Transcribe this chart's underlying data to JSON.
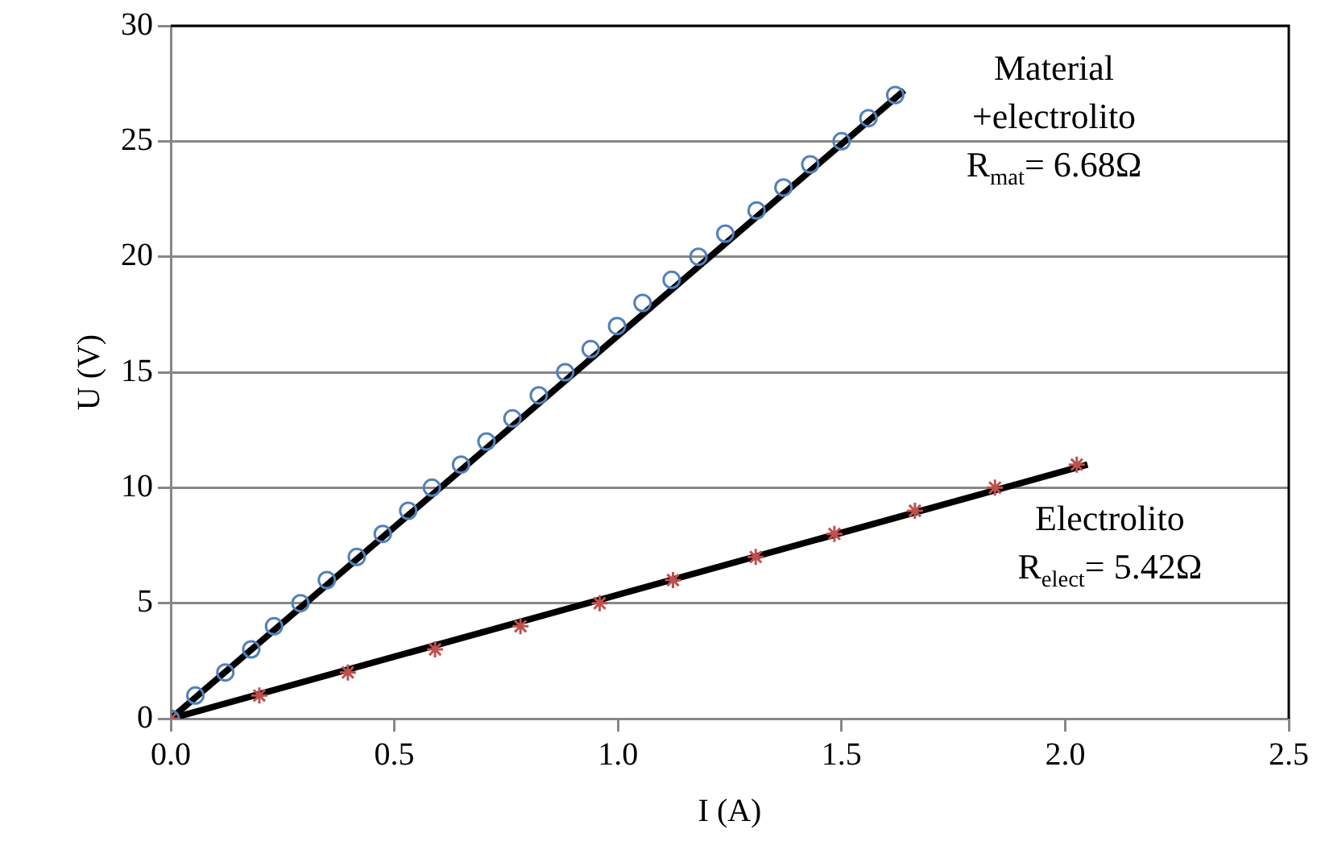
{
  "chart_data": {
    "type": "scatter",
    "xlabel": "I (A)",
    "ylabel": "U (V)",
    "xlim": [
      0,
      2.5
    ],
    "xticks": [
      {
        "value": 0,
        "label": "0.0"
      },
      {
        "value": 0.5,
        "label": "0.5"
      },
      {
        "value": 1,
        "label": "1.0"
      },
      {
        "value": 1.5,
        "label": "1.5"
      },
      {
        "value": 2,
        "label": "2.0"
      },
      {
        "value": 2.5,
        "label": "2.5"
      }
    ],
    "ylim": [
      0,
      30
    ],
    "yticks": [
      0,
      5,
      10,
      15,
      20,
      25,
      30
    ],
    "grid": "y",
    "legend": false,
    "series": [
      {
        "color": "#4f81bd",
        "marker": "circle",
        "x": [
          0,
          0.055,
          0.122,
          0.18,
          0.231,
          0.29,
          0.349,
          0.416,
          0.474,
          0.531,
          0.584,
          0.649,
          0.706,
          0.764,
          0.823,
          0.882,
          0.939,
          0.998,
          1.055,
          1.12,
          1.18,
          1.24,
          1.31,
          1.37,
          1.43,
          1.5,
          1.56,
          1.62
        ],
        "values": [
          0,
          1,
          2,
          3,
          4,
          5,
          6,
          7,
          8,
          9,
          10,
          11,
          12,
          13,
          14,
          15,
          16,
          17,
          18,
          19,
          20,
          21,
          22,
          23,
          24,
          25,
          26,
          27
        ]
      },
      {
        "type": "scatter",
        "color": "#c0504d",
        "marker": "cross",
        "x": [
          0,
          0.198,
          0.396,
          0.591,
          0.782,
          0.959,
          1.123,
          1.308,
          1.484,
          1.664,
          1.843,
          2.026
        ],
        "values": [
          0,
          1,
          2,
          3,
          4,
          5,
          6,
          7,
          8,
          9,
          10,
          11
        ]
      },
      {
        "type": "line",
        "color": "#000000",
        "marker": "none",
        "x": [
          0,
          1.64
        ],
        "values": [
          0,
          27.2
        ]
      },
      {
        "type": "line",
        "color": "#000000",
        "marker": "none",
        "x": [
          0,
          2.05
        ],
        "values": [
          0,
          11
        ]
      }
    ],
    "annotations": [
      "Material\n+electrolito\nR$_{mat}$= 6.68Ω",
      "Electrolito\nR$_{elect}$= 5.42Ω"
    ]
  }
}
